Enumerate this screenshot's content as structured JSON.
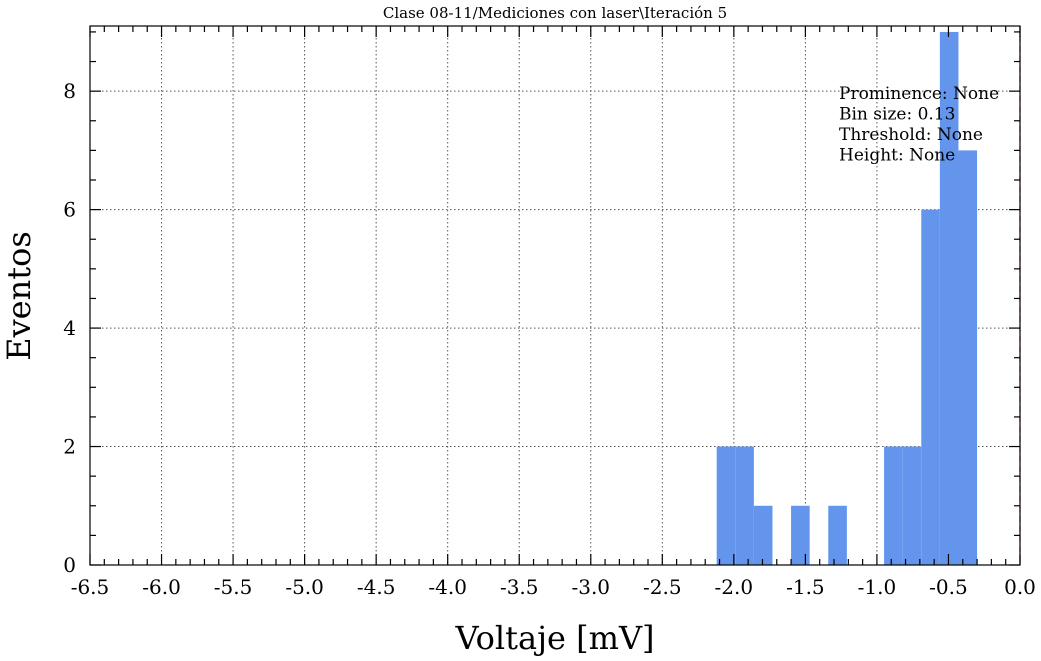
{
  "chart_data": {
    "type": "bar",
    "title": "Clase 08-11/Mediciones con laser\\Iteración 5",
    "xlabel": "Voltaje [mV]",
    "ylabel": "Eventos",
    "xlim": [
      -6.5,
      0.0
    ],
    "ylim": [
      0,
      9.1
    ],
    "xticks": [
      "-6.5",
      "-6.0",
      "-5.5",
      "-5.0",
      "-4.5",
      "-4.0",
      "-3.5",
      "-3.0",
      "-2.5",
      "-2.0",
      "-1.5",
      "-1.0",
      "-0.5",
      "0.0"
    ],
    "yticks": [
      "0",
      "2",
      "4",
      "6",
      "8"
    ],
    "grid": true,
    "bar_color": "#6495ed",
    "bins": [
      {
        "x0": -2.12,
        "x1": -1.99,
        "count": 2
      },
      {
        "x0": -1.99,
        "x1": -1.86,
        "count": 2
      },
      {
        "x0": -1.86,
        "x1": -1.73,
        "count": 1
      },
      {
        "x0": -1.73,
        "x1": -1.6,
        "count": 0
      },
      {
        "x0": -1.6,
        "x1": -1.47,
        "count": 1
      },
      {
        "x0": -1.47,
        "x1": -1.34,
        "count": 0
      },
      {
        "x0": -1.34,
        "x1": -1.21,
        "count": 1
      },
      {
        "x0": -1.21,
        "x1": -1.08,
        "count": 0
      },
      {
        "x0": -1.08,
        "x1": -0.95,
        "count": 0
      },
      {
        "x0": -0.95,
        "x1": -0.82,
        "count": 2
      },
      {
        "x0": -0.82,
        "x1": -0.69,
        "count": 2
      },
      {
        "x0": -0.69,
        "x1": -0.56,
        "count": 6
      },
      {
        "x0": -0.56,
        "x1": -0.43,
        "count": 9
      },
      {
        "x0": -0.43,
        "x1": -0.3,
        "count": 7
      }
    ],
    "annotations": [
      "Prominence: None",
      "Bin size: 0.13",
      "Threshold: None",
      "Height: None"
    ],
    "vline": {
      "x": 0.0,
      "color": "#d62728"
    }
  }
}
